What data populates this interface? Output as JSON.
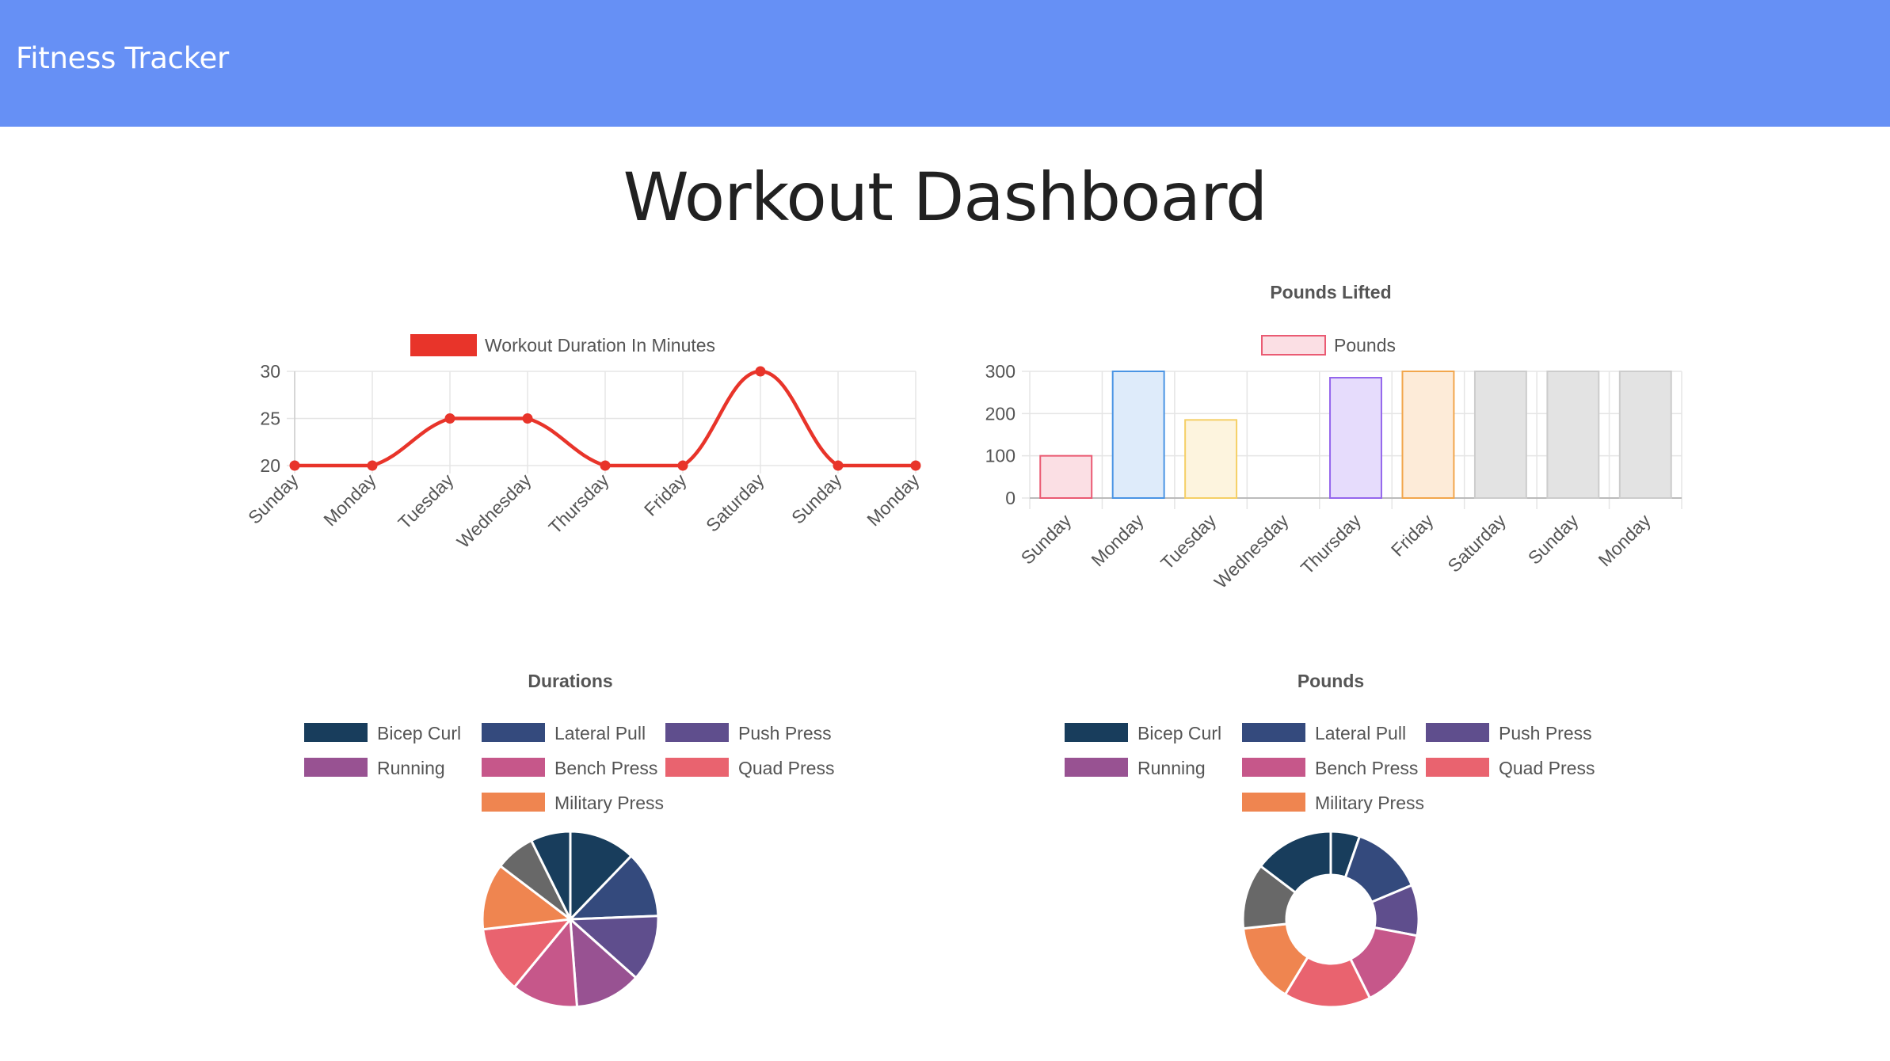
{
  "navbar": {
    "brand": "Fitness Tracker"
  },
  "page": {
    "title": "Workout Dashboard"
  },
  "colors": {
    "navbar": "#6690f5",
    "line": "#e8342a",
    "grid": "#e5e5e5",
    "axis_text": "#555555",
    "title_text": "#555555"
  },
  "chart_data": [
    {
      "type": "line",
      "title": "",
      "legend": {
        "position": "top",
        "labels": [
          "Workout Duration In Minutes"
        ]
      },
      "categories": [
        "Sunday",
        "Monday",
        "Tuesday",
        "Wednesday",
        "Thursday",
        "Friday",
        "Saturday",
        "Sunday",
        "Monday"
      ],
      "series": [
        {
          "name": "Workout Duration In Minutes",
          "values": [
            20,
            20,
            25,
            25,
            20,
            20,
            30,
            20,
            20
          ],
          "color": "#e8342a"
        }
      ],
      "yticks": [
        "20",
        "25",
        "30"
      ],
      "ylim": [
        20,
        30
      ],
      "grid": true
    },
    {
      "type": "bar",
      "title": "Pounds Lifted",
      "legend": {
        "position": "top",
        "labels": [
          "Pounds"
        ]
      },
      "categories": [
        "Sunday",
        "Monday",
        "Tuesday",
        "Wednesday",
        "Thursday",
        "Friday",
        "Saturday",
        "Sunday",
        "Monday"
      ],
      "series": [
        {
          "name": "Pounds",
          "values": [
            100,
            300,
            185,
            0,
            285,
            300,
            300,
            300,
            300
          ]
        }
      ],
      "fills": [
        "#fbdfe4",
        "#deebfa",
        "#fdf4de",
        "#e3e3e3",
        "#e6dcfc",
        "#fdebd8",
        "#e3e3e3",
        "#e3e3e3",
        "#e3e3e3"
      ],
      "strokes": [
        "#ea5b73",
        "#4a94e4",
        "#f5cf66",
        "#cccccc",
        "#9466ec",
        "#f2a64c",
        "#cccccc",
        "#cccccc",
        "#cccccc"
      ],
      "yticks": [
        "0",
        "100",
        "200",
        "300"
      ],
      "ylim": [
        0,
        300
      ],
      "grid": true
    },
    {
      "type": "pie",
      "title": "Durations",
      "legend": {
        "position": "top",
        "labels": [
          "Bicep Curl",
          "Lateral Pull",
          "Push Press",
          "Running",
          "Bench Press",
          "Quad Press",
          "Military Press"
        ]
      },
      "legend_colors": [
        "#183d5c",
        "#344a7d",
        "#5f4e8d",
        "#985292",
        "#c6578a",
        "#e9636f",
        "#ef8550"
      ],
      "slices": [
        {
          "value": 1,
          "color": "#183d5c"
        },
        {
          "value": 1,
          "color": "#344a7d"
        },
        {
          "value": 1,
          "color": "#5f4e8d"
        },
        {
          "value": 1,
          "color": "#985292"
        },
        {
          "value": 1,
          "color": "#c6578a"
        },
        {
          "value": 1,
          "color": "#e9636f"
        },
        {
          "value": 1,
          "color": "#ef8550"
        },
        {
          "value": 0.6,
          "color": "#686868"
        },
        {
          "value": 0.6,
          "color": "#183d5c"
        }
      ]
    },
    {
      "type": "doughnut",
      "title": "Pounds",
      "legend": {
        "position": "top",
        "labels": [
          "Bicep Curl",
          "Lateral Pull",
          "Push Press",
          "Running",
          "Bench Press",
          "Quad Press",
          "Military Press"
        ]
      },
      "legend_colors": [
        "#183d5c",
        "#344a7d",
        "#5f4e8d",
        "#985292",
        "#c6578a",
        "#e9636f",
        "#ef8550"
      ],
      "slices": [
        {
          "value": 20,
          "color": "#183d5c"
        },
        {
          "value": 50,
          "color": "#344a7d"
        },
        {
          "value": 35,
          "color": "#5f4e8d"
        },
        {
          "value": 0,
          "color": "#985292"
        },
        {
          "value": 55,
          "color": "#c6578a"
        },
        {
          "value": 60,
          "color": "#e9636f"
        },
        {
          "value": 55,
          "color": "#ef8550"
        },
        {
          "value": 45,
          "color": "#686868"
        },
        {
          "value": 55,
          "color": "#183d5c"
        }
      ]
    }
  ]
}
